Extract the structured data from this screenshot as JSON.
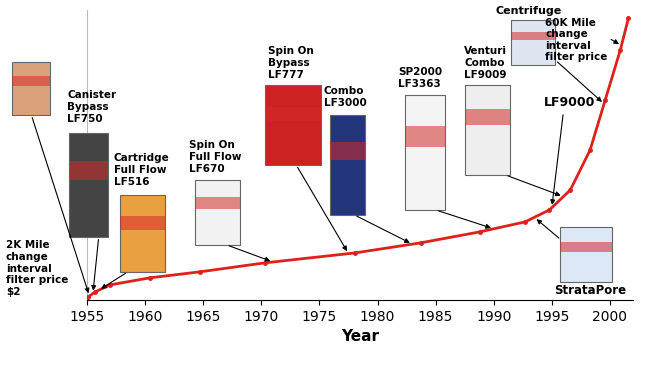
{
  "chart_data": {
    "type": "line",
    "xlabel": "Year",
    "x": [
      1955.1,
      1955.7,
      1957,
      1960.4,
      1964.7,
      1970.3,
      1978.1,
      1983.7,
      1988.8,
      1992.7,
      1994.8,
      1996.6,
      1998.3,
      1999.6,
      2000.9,
      2001.6
    ],
    "values": [
      3,
      8,
      15,
      22,
      28,
      37,
      47,
      57,
      68,
      78,
      90,
      110,
      150,
      200,
      250,
      282
    ],
    "color": "#e0201b",
    "marker": "circle",
    "line_style": "solid",
    "xlim": [
      1955,
      2002
    ],
    "xticks": [
      1955,
      1960,
      1965,
      1970,
      1975,
      1980,
      1985,
      1990,
      1995,
      2000
    ],
    "ylim": [
      0,
      290
    ],
    "tick_labels": "x",
    "grid": false,
    "annotations": [
      {
        "text": "2K Mile\nchange\ninterval\nfilter price\n$2",
        "x": 1955.2
      },
      {
        "text": "Canister\nBypass\nLF750",
        "x": 1955.5
      },
      {
        "text": "Cartridge\nFull Flow\nLF516",
        "x": 1956
      },
      {
        "text": "Spin On\nFull Flow\nLF670",
        "x": 1971
      },
      {
        "text": "Spin On\nBypass\nLF777",
        "x": 1977.5
      },
      {
        "text": "Combo\nLF3000",
        "x": 1983
      },
      {
        "text": "SP2000\nLF3363",
        "x": 1990
      },
      {
        "text": "Venturi\nCombo\nLF9009",
        "x": 1996
      },
      {
        "text": "Centrifuge",
        "x": 1999.5
      },
      {
        "text": "60K Mile\nchange\ninterval\nfilter price",
        "x": 2001
      },
      {
        "text": "LF9000",
        "x": 1995
      },
      {
        "text": "StrataPore",
        "x": 1993.5
      }
    ]
  }
}
